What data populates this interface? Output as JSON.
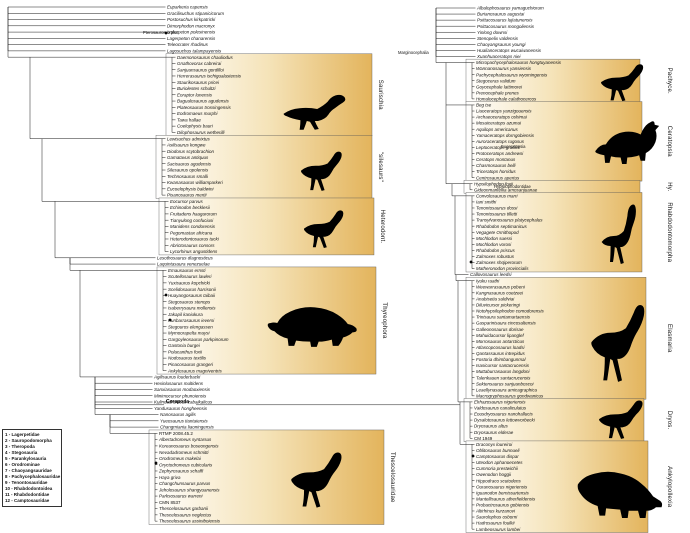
{
  "colors": {
    "box_gradient_start": "#ffffff",
    "box_gradient_mid": "#f5e3b8",
    "box_gradient_end": "#e3b45c",
    "line": "#1a1a1a",
    "silhouette": "#000000"
  },
  "annotations": [
    "Pterosauromorpha",
    "Cerapoda",
    "Marginocephalia",
    "Euceratopsia",
    "Hypsilophodontidae"
  ],
  "legend": {
    "items": [
      "1 - Lagerpetidae",
      "2 - Sauropodomorpha",
      "3 - Theropoda",
      "4 - Stegosauria",
      "5 - Parankylosauria",
      "6 - Orodrominae",
      "7 - Chaoyangsauridae",
      "8 - Pachycephalosauridae",
      "9 - Tenontosauridae",
      "10 - Rhabdodontoidea",
      "11 - Rhabdodontidae",
      "12 - Camptosauridae"
    ]
  },
  "left_tree": {
    "groups": [
      {
        "id": "archosaur-outgroups",
        "bar_label": "",
        "leaves": [
          "Euparkeria capensis",
          "Gracilisuchus stipanicicorum",
          "Postosuchus kirkpatricki",
          "Dimorphodon macronyx",
          "Ixalerpeton polesinensis",
          "Lagerpeton chanarensis",
          "Teleocrater rhadinus",
          "Lagosuchus talampayensis"
        ]
      },
      {
        "id": "saurischia",
        "bar_label": "Saurischia",
        "leaves": [
          "Daemonosaurus chauliodus",
          "Gnathovorax cabreirai",
          "Sanjuansaurus gordilloi",
          "Herrerasaurus ischigualastensis",
          "Staurikosaurus pricei",
          "Buriolestes schultzi",
          "Eoraptor lunensis",
          "Bagualosaurus agudensis",
          "Plateosaurus trossingensis",
          "Eodromaeus murphi",
          "Tawa hallae",
          "Coelophysis bauri",
          "Dilophosaurus wetherilli"
        ]
      },
      {
        "id": "silesaurs",
        "bar_label": "\"silesaurs\"",
        "leaves": [
          "Lewisuchus admixtus",
          "Asilisaurus kongwe",
          "Diodorus scytobrachion",
          "Gamatavus antiquus",
          "Sacisaurus agudensis",
          "Silesaurus opolensis",
          "Technosaurus smalli",
          "Kwanasaurus williamparkeri",
          "Eucoelophysis baldwini",
          "Pisanosaurus mertii"
        ]
      },
      {
        "id": "heterodontosauridae",
        "bar_label": "Heterodont.",
        "leaves": [
          "Eocursor parvus",
          "Echinodon becklesii",
          "Fruitadens haagarorum",
          "Tianyulong confuciusi",
          "Manidens condorensis",
          "Pegomastax africana",
          "Heterodontosaurus tucki",
          "Abrictosaurus consors",
          "Lycorhinus angustidens"
        ]
      },
      {
        "id": "lesothosaurus-grade",
        "bar_label": "",
        "leaves": [
          "Lesothosaurus diagnosticus",
          "Laquintasaura venezuelae"
        ]
      },
      {
        "id": "thyreophora",
        "bar_label": "Thyreophora",
        "leaves": [
          "Emausaurus ernsti",
          "Scutellosaurus lawleri",
          "Yuxisaurus kopchicki",
          "Scelidosaurus harrisonii",
          "Huayangosaurus taibaii",
          "Stegosaurus stenops",
          "Isaberrysaura mollensis",
          "Jakapil kaniukura",
          "Kunbarrasaurus ieversi",
          "Stegouros elengassen",
          "Mymoorapelta maysi",
          "Gargoyleosaurus parkpinorum",
          "Gastonia burgei",
          "Polacanthus foxii",
          "Nodosaurus textilis",
          "Pinacosaurus grangeri",
          "Ankylosaurus magniventris"
        ]
      },
      {
        "id": "neornithischia-grade",
        "bar_label": "",
        "leaves": [
          "Agilisaurus louderbacki",
          "Hexinlusaurus multidens",
          "Sanxiasaurus modaoxiensis",
          "Minimocursor phunoiensis",
          "Kulindadromeus zabaikalicus",
          "Yandusaurus hongheensis"
        ]
      },
      {
        "id": "nanosaurus-grade",
        "bar_label": "",
        "leaves": [
          "Nanosaurus agilis",
          "Yueosaurus tiantaiensis",
          "Changmiania liaoningensis"
        ]
      },
      {
        "id": "thescelosauridae",
        "bar_label": "Thescelosauridae",
        "leaves": [
          "RTMP 2008.45.2",
          "Albertadromeus syntarsus",
          "Koreanosaurus boseongensis",
          "Nevadadromeus schmitti",
          "Orodromeus makelai",
          "Oryctodromeus cubicularis",
          "Zephyrosaurus schaffi",
          "Haya griva",
          "Changchunsaurus parvus",
          "Jeholosaurus shangyuanensis",
          "Parksosaurus warreni",
          "CMN 8537",
          "Thescelosaurus garbanii",
          "Thescelosaurus neglectus",
          "Thescelosaurus assiniboiensis"
        ]
      }
    ]
  },
  "right_tree": {
    "groups": [
      {
        "id": "cerapoda-outgroups",
        "bar_label": "",
        "leaves": [
          "Albalophosaurus yamaguchiorum",
          "Burianosaurus augustai",
          "Psittacosaurus lujiatunensis",
          "Psittacosaurus mongoliensis",
          "Yinlong downsi",
          "Stenopelix valdensis",
          "Chaoyangsaurus youngi",
          "Hualianceratops wucaiwanensis",
          "Xuanhuaceratops niei"
        ]
      },
      {
        "id": "pachycephalosauria",
        "bar_label": "Pachyce.",
        "leaves": [
          "Micropachycephalosaurus hongtuyanensis",
          "Wannanosaurus yansiensis",
          "Pachycephalosaurus wyomingensis",
          "Stegoceras validum",
          "Goyocephale lattimorei",
          "Prenocephale prenes",
          "Homalocephale calathocercos"
        ]
      },
      {
        "id": "ceratopsia",
        "bar_label": "Ceratopsia",
        "leaves": [
          "Beg tse",
          "Liaoceratops yanzigouensis",
          "Archaeoceratops oshimai",
          "Mosaiceratops azumai",
          "Aquilops americanus",
          "Yamaceratops dorngobiensis",
          "Auroraceratops rugosus",
          "Leptoceratops gracilis",
          "Protoceratops andrewsi",
          "Ceratops montanus",
          "Chasmosaurus belli",
          "Triceratops horridus",
          "Centrosaurus apertus"
        ]
      },
      {
        "id": "hypsilophodontidae",
        "bar_label": "Hy.",
        "leaves": [
          "Hypsilophodon foxii",
          "Gideonmantellia amosanjuanae"
        ]
      },
      {
        "id": "rhabdodontomorpha",
        "bar_label": "Rhabdodontomorpha",
        "leaves": [
          "Convolosaurus marri",
          "Iani smithi",
          "Tenontosaurus dossi",
          "Tenontosaurus tilletti",
          "Transylvanosaurus platycephalus",
          "Rhabdodon septimanicus",
          "Vegagete Ornithopod",
          "Mochlodon suessi",
          "Mochlodon vorosi",
          "Rhabdodon priscus",
          "Zalmoxes robustus",
          "Zalmoxes shqiperorum",
          "Matheronodon provincialis"
        ]
      },
      {
        "id": "callovosaurus-grade",
        "bar_label": "",
        "leaves": [
          "Callovosaurus leedsi"
        ]
      },
      {
        "id": "elasmaria",
        "bar_label": "Elasmaria",
        "leaves": [
          "Iyuku raathi",
          "Weewarrasaurus pobeni",
          "Kangnasaurus coetzeei",
          "Anabisetia saldiviai",
          "Diluvicursor pickeringi",
          "Notohypsilophodon comodorensis",
          "Trinisaura santamartaensis",
          "Gasparinisaura cincosaltensis",
          "Galleonosaurus dorisae",
          "Mahuidacursor lipanglef",
          "Morrosaurus antarcticus",
          "Atlascopcosaurus loadsi",
          "Qantassaurus intrepidus",
          "Fostoria dhimbangunmal",
          "Isasicursor santacrucensis",
          "Muttaburrasaurus langdoni",
          "Talenkauen santacrucensis",
          "Sektensaurus sanjuanboscoi",
          "Leaellynasaura amicagraphica",
          "Macrogryphosaurus gondwanicus"
        ]
      },
      {
        "id": "dryosauridae",
        "bar_label": "Dryos.",
        "leaves": [
          "Elrhazosaurus nigeriensis",
          "Valdosaurus canaliculatus",
          "Eousdryosaurus nanohallucis",
          "Dysalotosaurus lettowvorbecki",
          "Dryosaurus altus",
          "Dryosaurus elderae",
          "CM 1949"
        ]
      },
      {
        "id": "ankylopollexia",
        "bar_label": "Ankylopollexia",
        "leaves": [
          "Draconyx loureiroi",
          "Oblitosaurus bunnueli",
          "Camptosaurus dispar",
          "Uteodon aphanoecetes",
          "Cumnoria prestwichii",
          "Owenodon hoggii",
          "Hippodraco scutodens",
          "Ouranosaurus nigeriensis",
          "Iguanodon bernissartensis",
          "Mantellisaurus atherfieldensis",
          "Probactrosaurus gobiensis",
          "Altirhinus kurzanovi",
          "Saurolophus osborni",
          "Hadrosaurus foulkii",
          "Lambeosaurus lambei"
        ]
      }
    ]
  }
}
